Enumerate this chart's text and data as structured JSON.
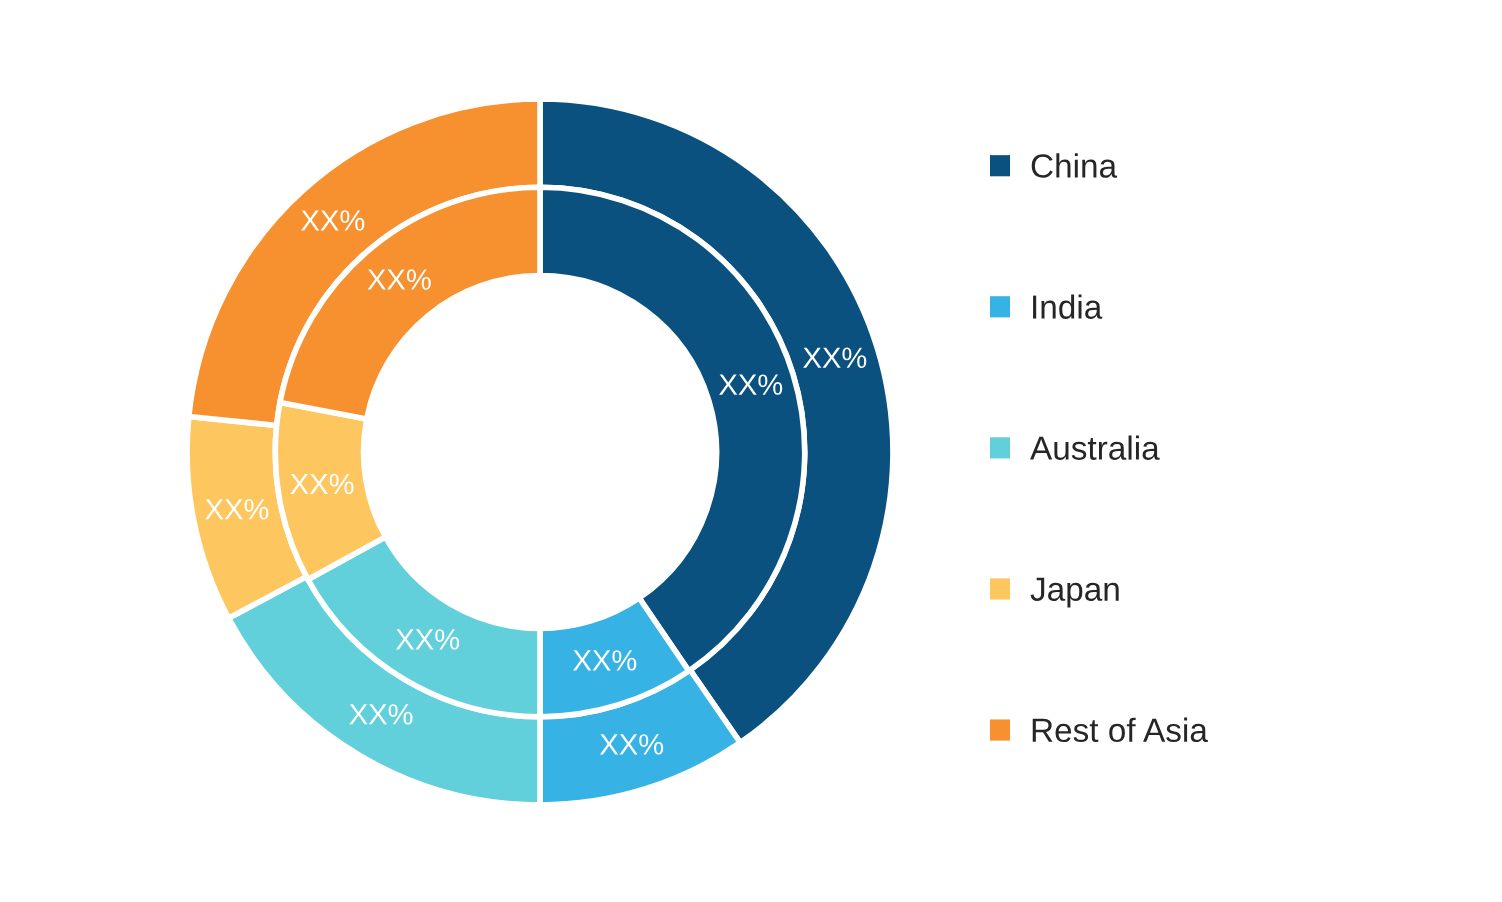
{
  "chart_data": {
    "type": "donut",
    "categories": [
      "China",
      "India",
      "Australia",
      "Japan",
      "Rest of Asia"
    ],
    "colors": [
      "#0b5180",
      "#36b3e4",
      "#62d0da",
      "#fec65e",
      "#f7902f"
    ],
    "series": [
      {
        "values": [
          40.4,
          9.6,
          17.2,
          9.4,
          23.4
        ],
        "value_labels": [
          "XX%",
          "XX%",
          "XX%",
          "XX%",
          "XX%"
        ]
      },
      {
        "values": [
          40.5,
          9.5,
          17,
          11,
          22
        ],
        "value_labels": [
          "XX%",
          "XX%",
          "XX%",
          "XX%",
          "XX%"
        ]
      }
    ],
    "legend": "right"
  }
}
